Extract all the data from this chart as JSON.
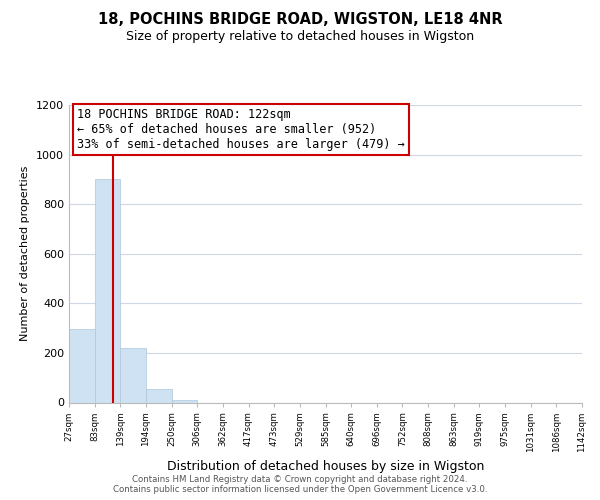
{
  "title": "18, POCHINS BRIDGE ROAD, WIGSTON, LE18 4NR",
  "subtitle": "Size of property relative to detached houses in Wigston",
  "xlabel": "Distribution of detached houses by size in Wigston",
  "ylabel": "Number of detached properties",
  "bin_labels": [
    "27sqm",
    "83sqm",
    "139sqm",
    "194sqm",
    "250sqm",
    "306sqm",
    "362sqm",
    "417sqm",
    "473sqm",
    "529sqm",
    "585sqm",
    "640sqm",
    "696sqm",
    "752sqm",
    "808sqm",
    "863sqm",
    "919sqm",
    "975sqm",
    "1031sqm",
    "1086sqm",
    "1142sqm"
  ],
  "bar_values": [
    295,
    900,
    220,
    55,
    10,
    0,
    0,
    0,
    0,
    0,
    0,
    0,
    0,
    0,
    0,
    0,
    0,
    0,
    0,
    0
  ],
  "bar_color": "#cfe2f3",
  "bar_edge_color": "#aec6d8",
  "property_line_color": "#cc0000",
  "ylim": [
    0,
    1200
  ],
  "yticks": [
    0,
    200,
    400,
    600,
    800,
    1000,
    1200
  ],
  "annotation_title": "18 POCHINS BRIDGE ROAD: 122sqm",
  "annotation_line1": "← 65% of detached houses are smaller (952)",
  "annotation_line2": "33% of semi-detached houses are larger (479) →",
  "annotation_box_color": "#ffffff",
  "annotation_box_edge": "#cc0000",
  "footer_line1": "Contains HM Land Registry data © Crown copyright and database right 2024.",
  "footer_line2": "Contains public sector information licensed under the Open Government Licence v3.0.",
  "grid_color": "#d0d8e8",
  "background_color": "#ffffff",
  "property_sqm": 122,
  "bin_low": 83,
  "bin_high": 139,
  "bin_index": 1
}
